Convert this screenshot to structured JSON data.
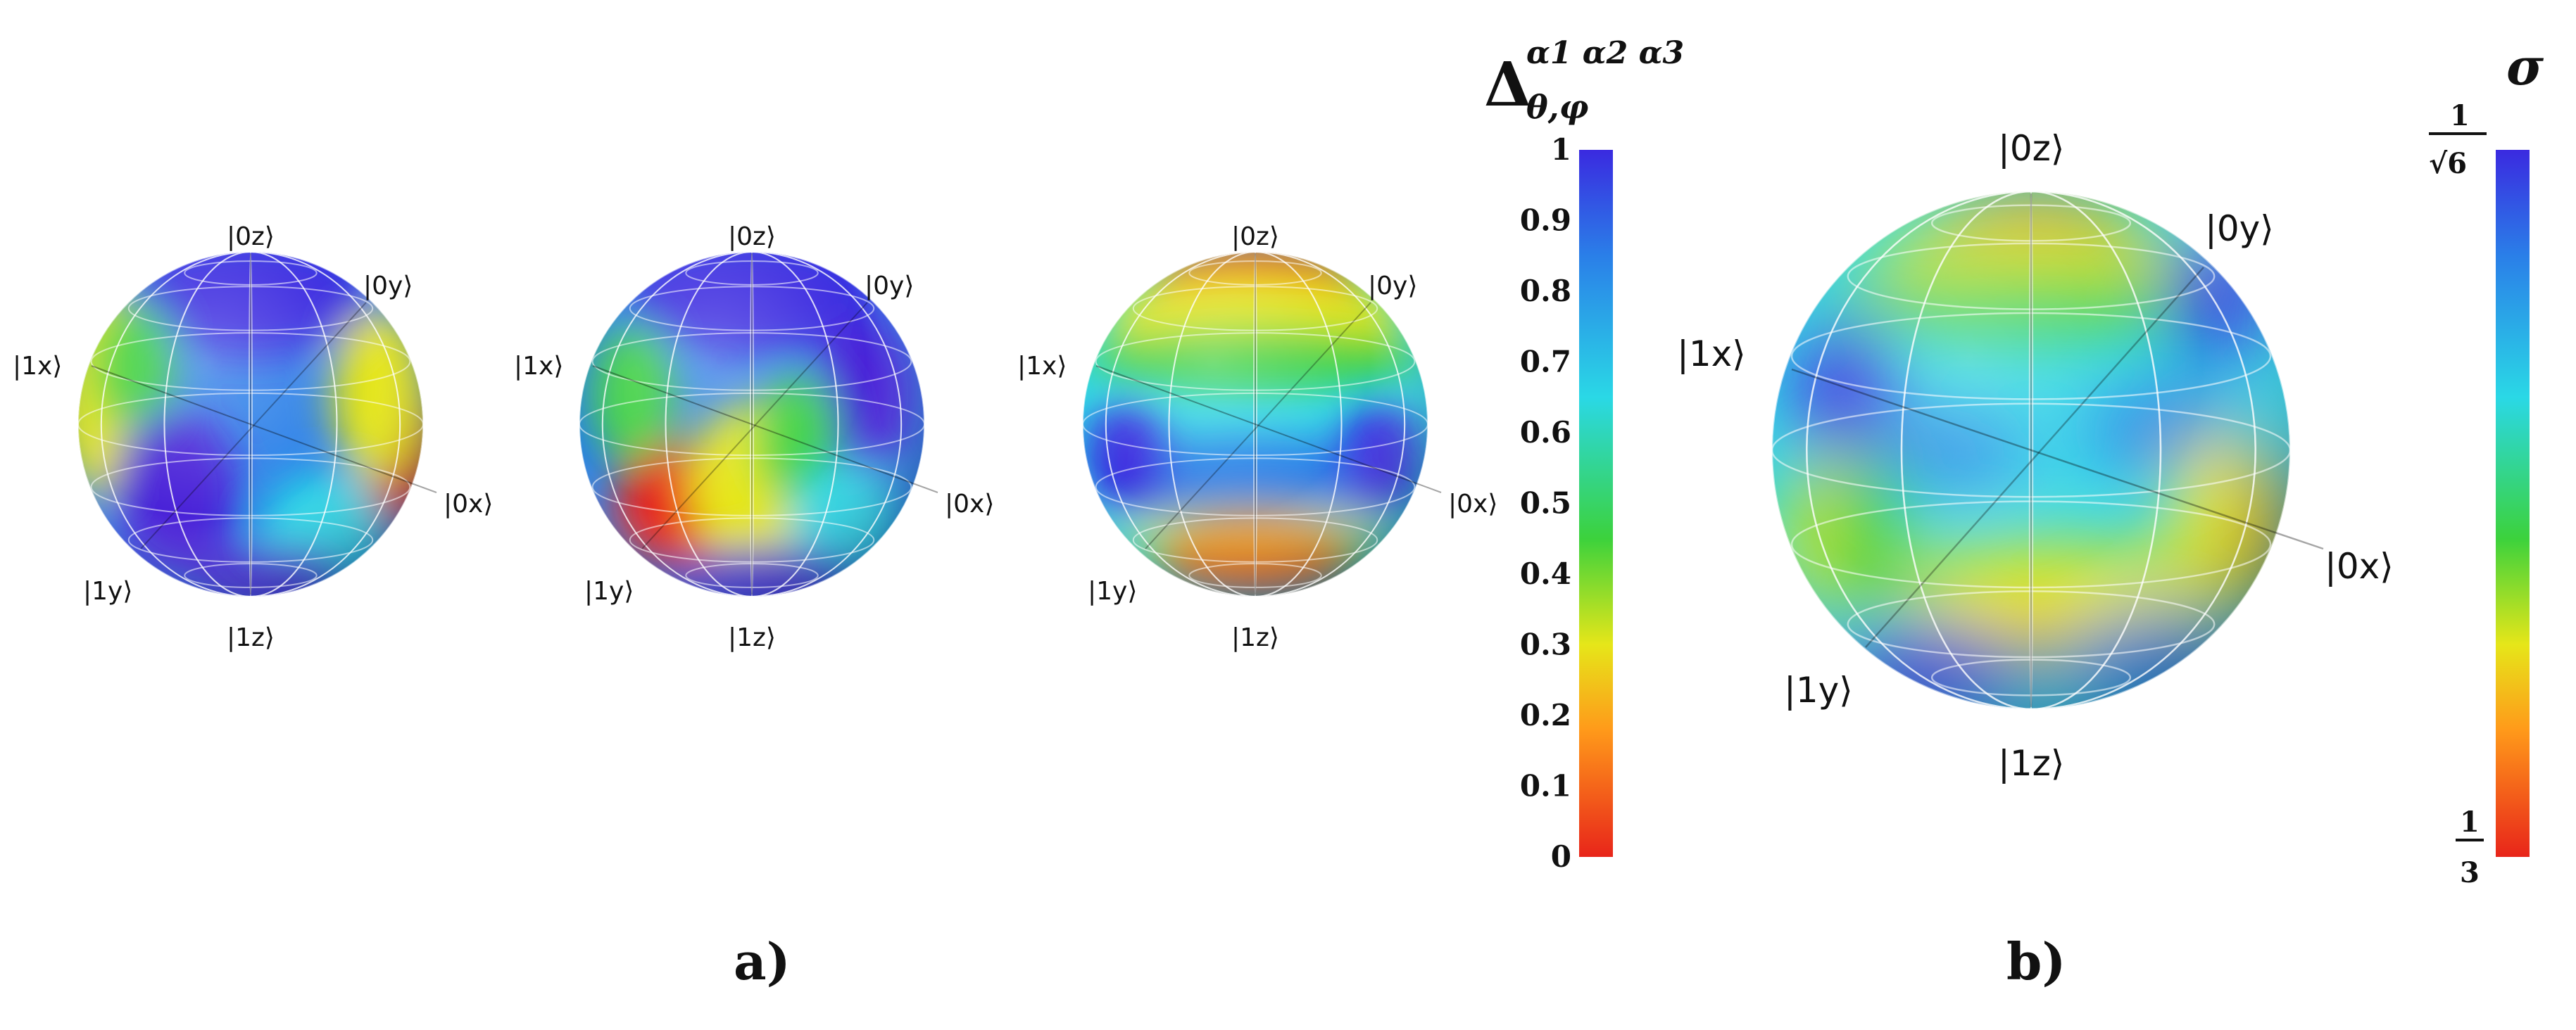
{
  "panels": {
    "a_label": "a)",
    "b_label": "b)"
  },
  "basis_labels": {
    "zero_z": "|0z⟩",
    "one_z": "|1z⟩",
    "zero_y": "|0y⟩",
    "one_y": "|1y⟩",
    "zero_x": "|0x⟩",
    "one_x": "|1x⟩"
  },
  "colorbar_a": {
    "title_main": "Δ",
    "title_sub": "θ,φ",
    "title_sup": "α1 α2 α3",
    "ticks": [
      "0",
      "0.1",
      "0.2",
      "0.3",
      "0.4",
      "0.5",
      "0.6",
      "0.7",
      "0.8",
      "0.9",
      "1"
    ]
  },
  "colorbar_b": {
    "title": "σ",
    "top_numerator": "1",
    "top_denominator": "√6",
    "bottom_numerator": "1",
    "bottom_denominator": "3"
  },
  "colors": {
    "red": "#e8251a",
    "orange": "#ff8c1a",
    "yellow": "#e6e619",
    "green": "#3cd23c",
    "cyan": "#2ad8e6",
    "blue": "#2a7fe8",
    "purple": "#4a22d8"
  }
}
